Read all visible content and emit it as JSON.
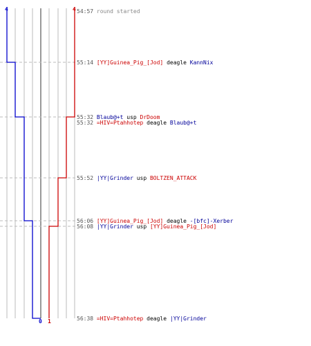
{
  "colors": {
    "red_team": "#cc0000",
    "blue_team": "#0000cc",
    "grid": "#bbbbbb",
    "center": "#555555",
    "dashed": "#bbbbbb"
  },
  "chart_data": {
    "type": "line",
    "title": "",
    "top_scores": {
      "blue": "4",
      "red": "4"
    },
    "bottom_scores": {
      "blue": "0",
      "red": "1"
    },
    "series": [
      {
        "team": "blue",
        "values": [
          4,
          3,
          2,
          1,
          0
        ]
      },
      {
        "team": "red",
        "values": [
          4,
          3,
          2,
          1
        ]
      }
    ],
    "events": [
      {
        "time": "54:57",
        "system": "round started"
      },
      {
        "time": "55:14",
        "killer": "[YY]Guinea_Pig_[Jod]",
        "killer_team": "red",
        "weapon": "deagle",
        "victim": "KannNix",
        "victim_team": "blue"
      },
      {
        "time": "55:32",
        "killer": "Blaub@+t",
        "killer_team": "blue",
        "weapon": "usp",
        "victim": "DrDoom",
        "victim_team": "red"
      },
      {
        "time": "55:32",
        "killer": "=HIV=Ptahhotep",
        "killer_team": "red",
        "weapon": "deagle",
        "victim": "Blaub@+t",
        "victim_team": "blue"
      },
      {
        "time": "55:52",
        "killer": "|YY|Grinder",
        "killer_team": "blue",
        "weapon": "usp",
        "victim": "BOLTZEN_ATTACK",
        "victim_team": "red"
      },
      {
        "time": "56:06",
        "killer": "[YY]Guinea_Pig_[Jod]",
        "killer_team": "red",
        "weapon": "deagle",
        "victim": "-[bfc]-Xerber",
        "victim_team": "blue"
      },
      {
        "time": "56:08",
        "killer": "|YY|Grinder",
        "killer_team": "blue",
        "weapon": "usp",
        "victim": "[YY]Guinea_Pig_[Jod]",
        "victim_team": "red"
      },
      {
        "time": "56:38",
        "killer": "=HIV=Ptahhotep",
        "killer_team": "red",
        "weapon": "deagle",
        "victim": "|YY|Grinder",
        "victim_team": "blue"
      }
    ]
  }
}
